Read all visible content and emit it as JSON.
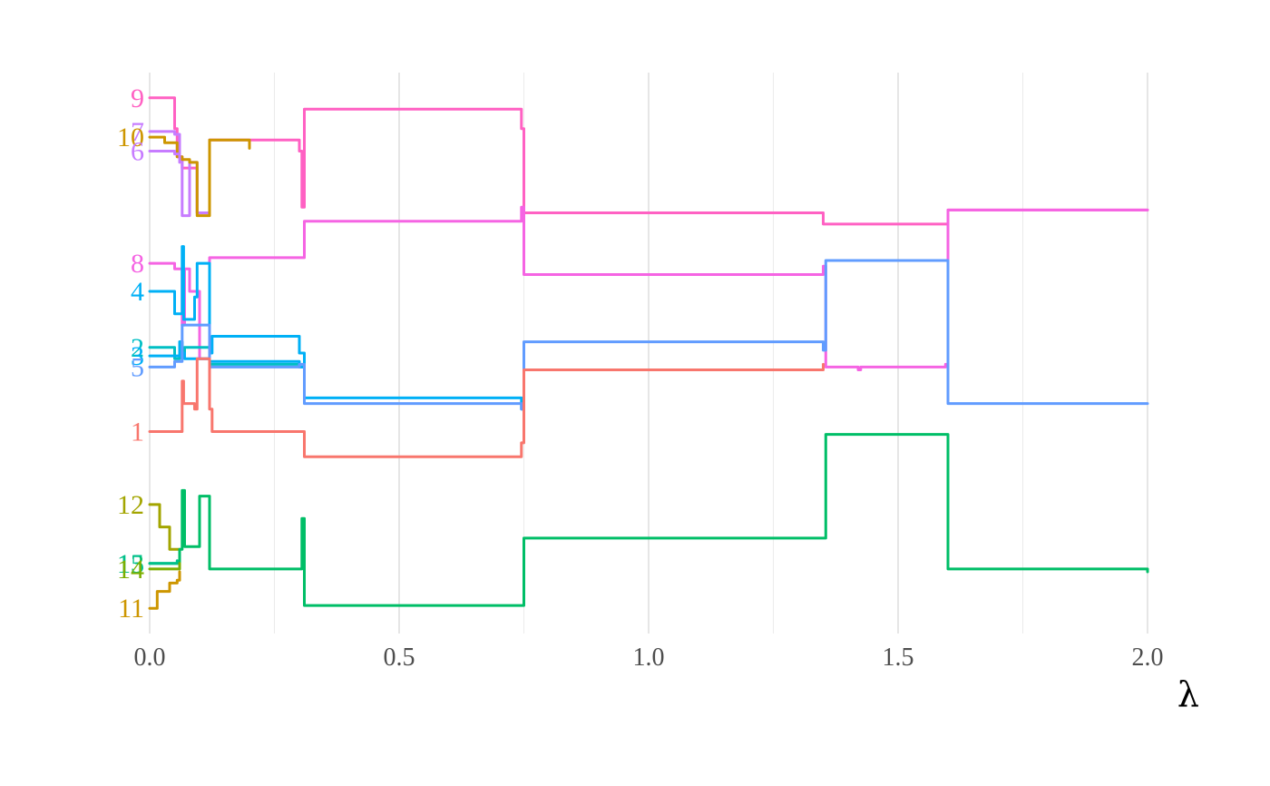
{
  "chart_data": {
    "type": "line",
    "title": "",
    "xlabel": "λ",
    "ylabel": "",
    "xlim": [
      0,
      2
    ],
    "x_ticks": [
      0.0,
      0.5,
      1.0,
      1.5,
      2.0
    ],
    "x_tick_labels": [
      "0.0",
      "0.5",
      "1.0",
      "1.5",
      "2.0"
    ],
    "x_minor_ticks": [
      0.25,
      0.75,
      1.25,
      1.75
    ],
    "ylim": [
      0,
      100
    ],
    "y_axis_shown": false,
    "grid": "vertical only",
    "legend": "none; series labels at left edge",
    "step": true,
    "series": [
      {
        "name": "9",
        "color": "#FF61C3",
        "x": [
          0,
          0.05,
          0.055,
          0.065,
          0.095,
          0.11,
          0.12,
          0.3,
          0.305,
          0.31,
          0.745,
          0.75,
          1.35,
          1.595,
          1.6,
          2.0
        ],
        "y": [
          95.5,
          90,
          85,
          83,
          75,
          75,
          88,
          86,
          76,
          93.5,
          90,
          75,
          73,
          73,
          75.5,
          75.5
        ]
      },
      {
        "name": "7",
        "color": "#C77CFF",
        "x": [
          0,
          0.05,
          0.06,
          0.065,
          0.08,
          0.095,
          0.11,
          0.12
        ],
        "y": [
          89.5,
          89,
          85,
          74.5,
          84,
          75,
          75,
          88
        ]
      },
      {
        "name": "10",
        "color": "#CD9600",
        "x": [
          0,
          0.03,
          0.055,
          0.065,
          0.08,
          0.095,
          0.11,
          0.12,
          0.2
        ],
        "y": [
          88.5,
          87.5,
          85,
          84.5,
          84,
          74.5,
          74.5,
          88,
          86.5
        ]
      },
      {
        "name": "6",
        "color": "#C77CFF",
        "x": [
          0,
          0.02,
          0.05,
          0.06
        ],
        "y": [
          86,
          86,
          85.5,
          84
        ]
      },
      {
        "name": "8",
        "color": "#F564E3",
        "x": [
          0,
          0.05,
          0.065,
          0.07,
          0.08,
          0.095,
          0.1,
          0.12,
          0.3,
          0.31,
          0.745,
          0.75,
          1.35,
          1.355,
          1.42,
          1.425,
          1.595,
          1.6,
          2.0
        ],
        "y": [
          66,
          65,
          55,
          65,
          61,
          61,
          49,
          67,
          67,
          73.5,
          76,
          64,
          65.5,
          47.5,
          47,
          47.5,
          48,
          75.5,
          75.5
        ]
      },
      {
        "name": "4",
        "color": "#00B0F6",
        "x": [
          0,
          0.05,
          0.065,
          0.068,
          0.09,
          0.095,
          0.12,
          0.125,
          0.3,
          0.31,
          0.745,
          0.75
        ],
        "y": [
          61,
          57,
          69,
          56,
          60,
          66,
          50,
          53,
          50,
          42,
          40,
          40
        ]
      },
      {
        "name": "2",
        "color": "#00BFC4",
        "x": [
          0,
          0.05,
          0.06,
          0.065,
          0.07,
          0.12,
          0.3,
          0.31
        ],
        "y": [
          51,
          49,
          52,
          50,
          51,
          48,
          47.5,
          43
        ]
      },
      {
        "name": "3",
        "color": "#00B0F6",
        "x": [
          0,
          0.05,
          0.06,
          0.065,
          0.07,
          0.12,
          0.3,
          0.31
        ],
        "y": [
          49.5,
          49.5,
          52,
          50,
          49,
          48.5,
          47.5,
          43
        ]
      },
      {
        "name": "5",
        "color": "#619CFF",
        "x": [
          0,
          0.05,
          0.065,
          0.12,
          0.3,
          0.31,
          0.745,
          0.75,
          1.35,
          1.355,
          1.595,
          1.6,
          2.0
        ],
        "y": [
          47.5,
          48.5,
          55,
          47.5,
          48,
          41,
          40,
          52,
          50.5,
          66.5,
          66.5,
          41,
          41
        ]
      },
      {
        "name": "1",
        "color": "#F8766D",
        "x": [
          0,
          0.05,
          0.065,
          0.068,
          0.09,
          0.095,
          0.12,
          0.125,
          0.3,
          0.31,
          0.745,
          0.75,
          1.35
        ],
        "y": [
          36,
          36,
          45,
          41,
          40,
          49,
          40,
          36,
          36,
          31.5,
          34,
          47,
          48
        ]
      },
      {
        "name": "12",
        "color": "#A3A500",
        "x": [
          0,
          0.02,
          0.04,
          0.06
        ],
        "y": [
          23,
          19,
          15,
          13.5
        ]
      },
      {
        "name": "13",
        "color": "#00BE67",
        "x": [
          0,
          0.05,
          0.06,
          0.065,
          0.07,
          0.095,
          0.1,
          0.115,
          0.12,
          0.3,
          0.305,
          0.31,
          0.745,
          0.75,
          1.35,
          1.355,
          1.595,
          1.6,
          2.0
        ],
        "y": [
          12.5,
          12.5,
          15,
          25.5,
          15.5,
          15.5,
          24.5,
          24.5,
          11.5,
          11.5,
          20.5,
          5,
          5,
          17,
          17,
          35.5,
          35.5,
          11.5,
          11
        ]
      },
      {
        "name": "15",
        "color": "#00C08B",
        "x": [
          0,
          0.05,
          0.055
        ],
        "y": [
          12.5,
          12.5,
          13
        ]
      },
      {
        "name": "14",
        "color": "#7CAE00",
        "x": [
          0,
          0.05,
          0.06
        ],
        "y": [
          11.5,
          11.5,
          12.5
        ]
      },
      {
        "name": "11",
        "color": "#CD9600",
        "x": [
          0,
          0.015,
          0.04,
          0.055,
          0.06
        ],
        "y": [
          4.5,
          7.5,
          9,
          9.5,
          11
        ]
      }
    ]
  }
}
